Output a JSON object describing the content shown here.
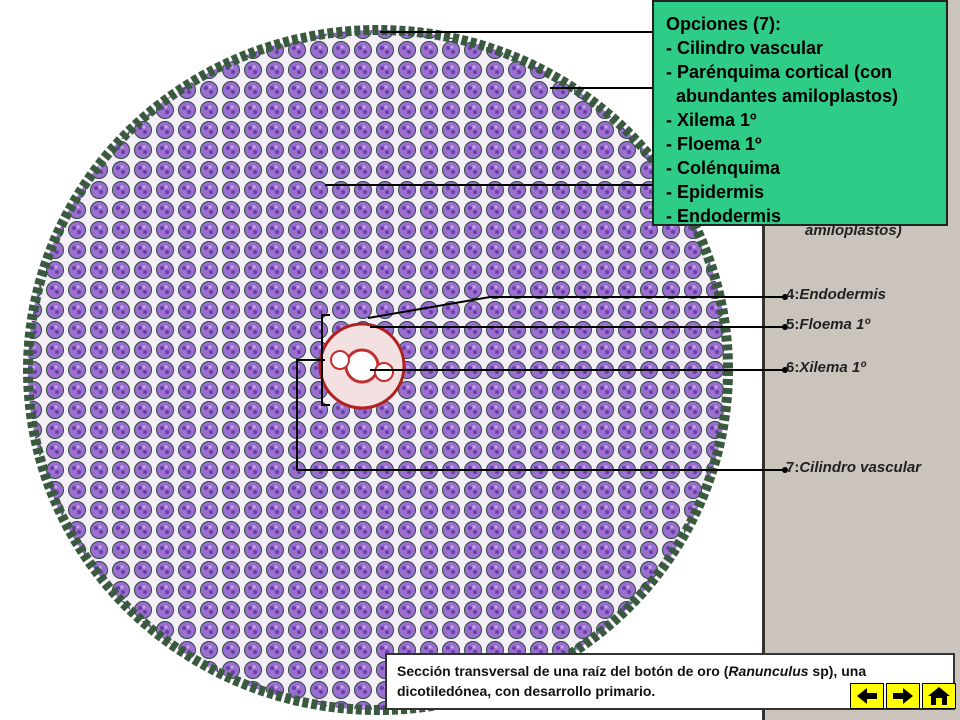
{
  "options": {
    "title": "Opciones (7):",
    "items": [
      "- Cilindro vascular",
      "- Parénquima cortical (con",
      "  abundantes amiloplastos)",
      "- Xilema 1º",
      "- Floema 1º",
      "- Colénquima",
      "- Epidermis",
      "- Endodermis"
    ]
  },
  "partial_label": "amiloplastos)",
  "labels": [
    {
      "number": "4:",
      "text": "Endodermis"
    },
    {
      "number": "5:",
      "text": "Floema 1º"
    },
    {
      "number": "6:",
      "text": "Xilema 1º"
    },
    {
      "number": "7:",
      "text": "Cilindro vascular"
    }
  ],
  "caption": {
    "parts": [
      "Sección transversal de una raíz del botón de oro (",
      "Ranunculus",
      " sp), una dicotiledónea, con desarrollo primario."
    ]
  }
}
